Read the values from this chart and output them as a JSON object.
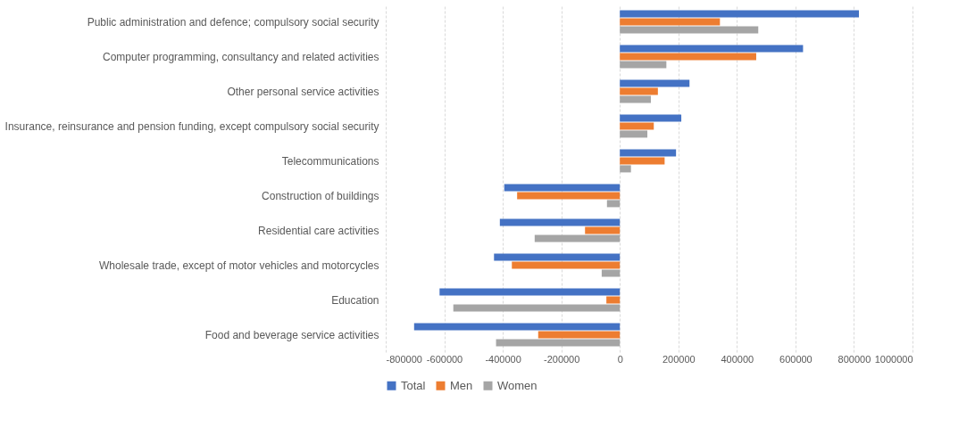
{
  "chart_data": {
    "type": "bar",
    "orientation": "horizontal",
    "categories": [
      "Public administration and defence; compulsory social security",
      "Computer programming, consultancy and related activities",
      "Other personal service activities",
      "Insurance, reinsurance and pension funding, except compulsory social security",
      "Telecommunications",
      "Construction of buildings",
      "Residential care activities",
      "Wholesale trade, except of motor vehicles and motorcycles",
      "Education",
      "Food and beverage service activities"
    ],
    "series": [
      {
        "name": "Total",
        "color": "#4472c4",
        "values": [
          817000,
          626000,
          238000,
          210000,
          192000,
          -395000,
          -410000,
          -430000,
          -616000,
          -703000
        ]
      },
      {
        "name": "Men",
        "color": "#ed7d31",
        "values": [
          342000,
          466000,
          130000,
          116000,
          153000,
          -351000,
          -119000,
          -369000,
          -46000,
          -279000
        ]
      },
      {
        "name": "Women",
        "color": "#a5a5a5",
        "values": [
          473000,
          159000,
          106000,
          94000,
          38000,
          -44000,
          -291000,
          -62000,
          -569000,
          -423000
        ]
      }
    ],
    "xlim": [
      -800000,
      1000000
    ],
    "xticks": [
      -800000,
      -600000,
      -400000,
      -200000,
      0,
      200000,
      400000,
      600000,
      800000,
      1000000
    ],
    "grid": "x",
    "legend": "bottom"
  }
}
